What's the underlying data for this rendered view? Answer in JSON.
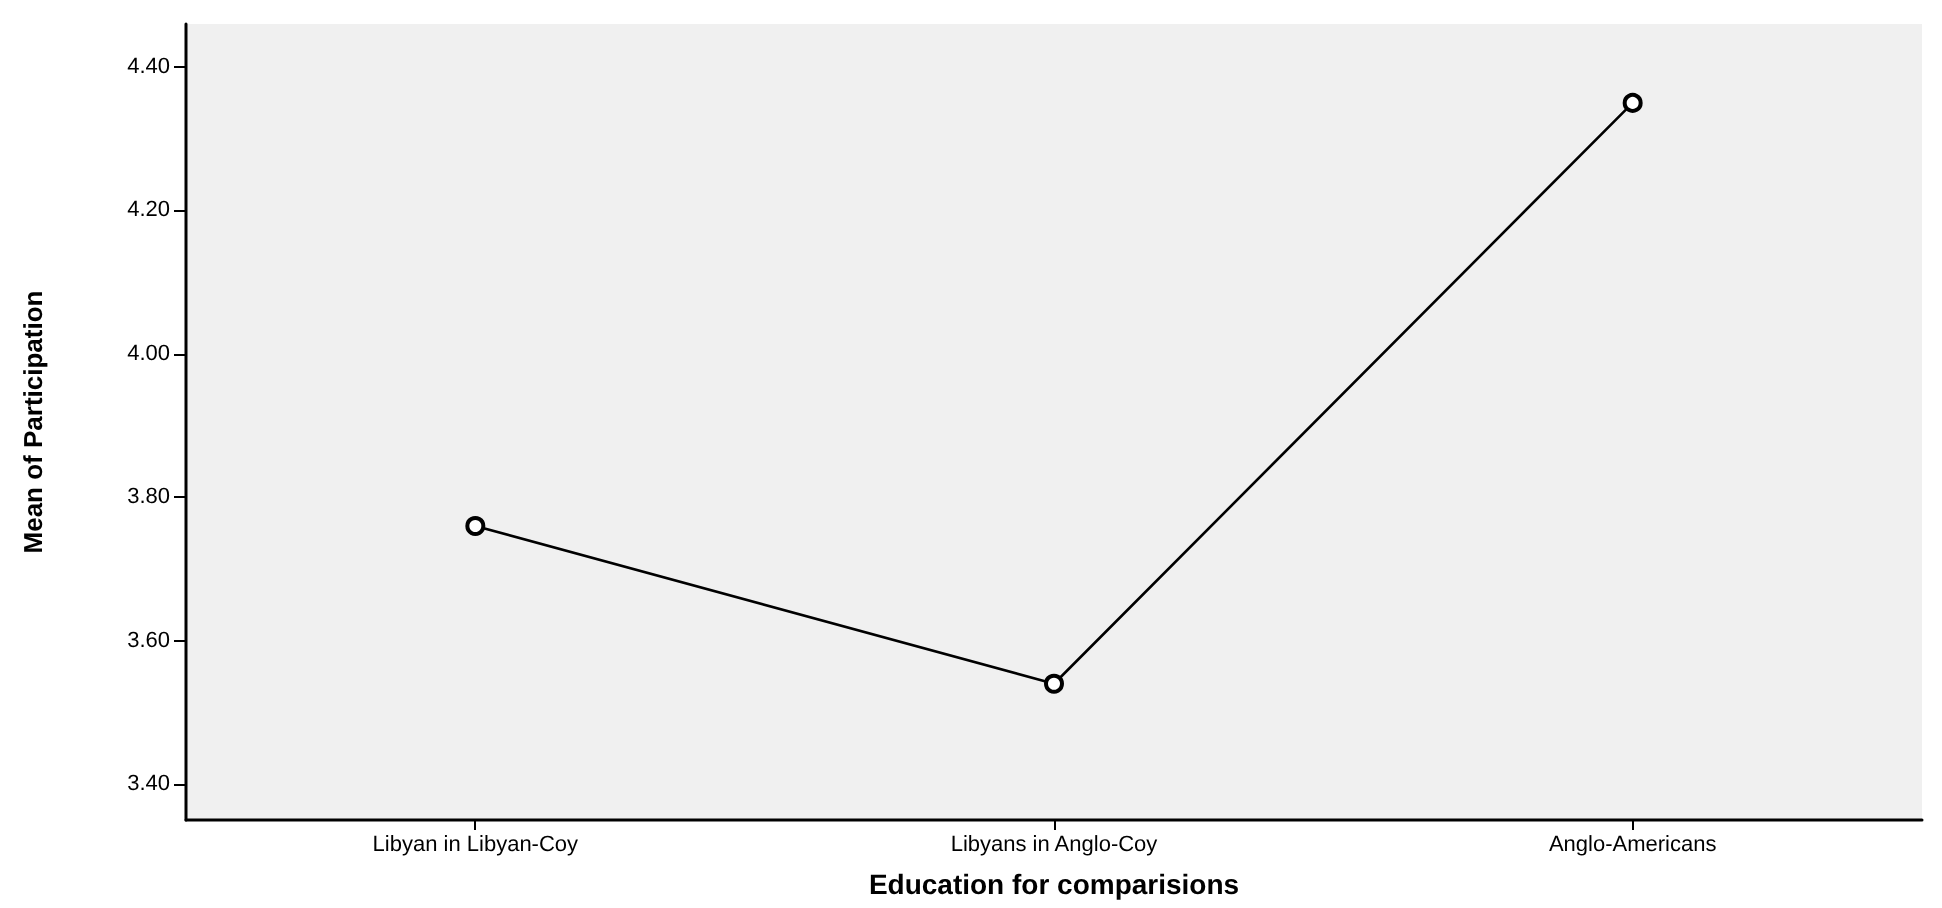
{
  "chart_data": {
    "type": "line",
    "xlabel": "Education for comparisions",
    "ylabel": "Mean of Participation",
    "categories": [
      "Libyan in Libyan-Coy",
      "Libyans in Anglo-Coy",
      "Anglo-Americans"
    ],
    "series": [
      {
        "color": "#000000",
        "values": [
          3.76,
          3.54,
          4.35
        ]
      }
    ],
    "ylim": [
      3.35,
      4.46
    ],
    "yticks": [
      {
        "value": 3.4,
        "label": "3.40"
      },
      {
        "value": 3.6,
        "label": "3.60"
      },
      {
        "value": 3.8,
        "label": "3.80"
      },
      {
        "value": 4.0,
        "label": "4.00"
      },
      {
        "value": 4.2,
        "label": "4.20"
      },
      {
        "value": 4.4,
        "label": "4.40"
      }
    ],
    "marker": "circle",
    "line_style": "solid"
  }
}
